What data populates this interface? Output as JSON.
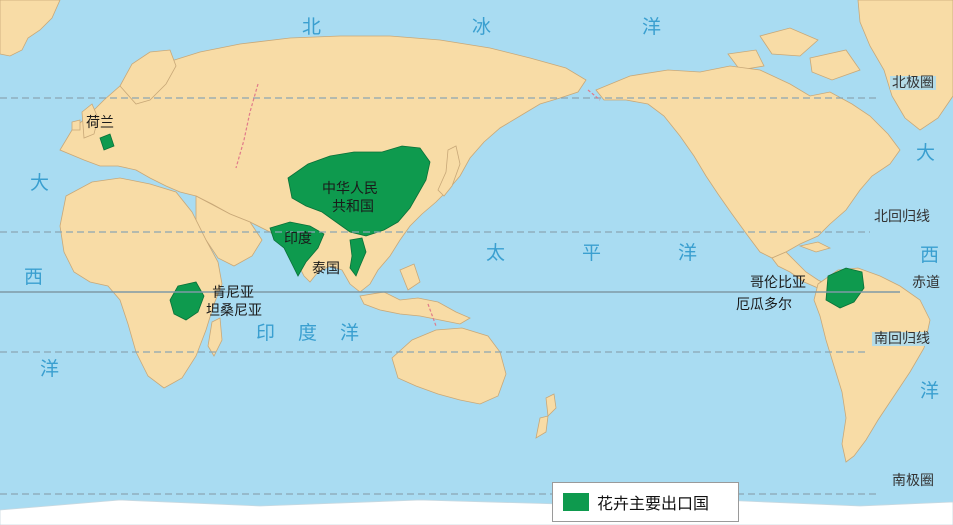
{
  "map": {
    "oceans": {
      "arctic": [
        "北",
        "冰",
        "洋"
      ],
      "atlantic_west": [
        "大",
        "西",
        "洋"
      ],
      "atlantic_east": [
        "大",
        "西",
        "洋"
      ],
      "pacific": [
        "太",
        "平",
        "洋"
      ],
      "indian": [
        "印",
        "度",
        "洋"
      ]
    },
    "reference_lines": {
      "arctic_circle": "北极圈",
      "tropic_cancer": "北回归线",
      "equator": "赤道",
      "tropic_capricorn": "南回归线",
      "antarctic_circle": "南极圈"
    },
    "export_countries": {
      "netherlands": "荷兰",
      "china_line1": "中华人民",
      "china_line2": "共和国",
      "india": "印度",
      "thailand": "泰国",
      "kenya": "肯尼亚",
      "tanzania": "坦桑尼亚",
      "colombia": "哥伦比亚",
      "ecuador": "厄瓜多尔"
    },
    "colors": {
      "ocean": "#a9dcf2",
      "land": "#f8dca6",
      "export": "#0e9a4e",
      "ocean_label": "#3a9fd0"
    }
  },
  "legend": {
    "label": "花卉主要出口国"
  }
}
